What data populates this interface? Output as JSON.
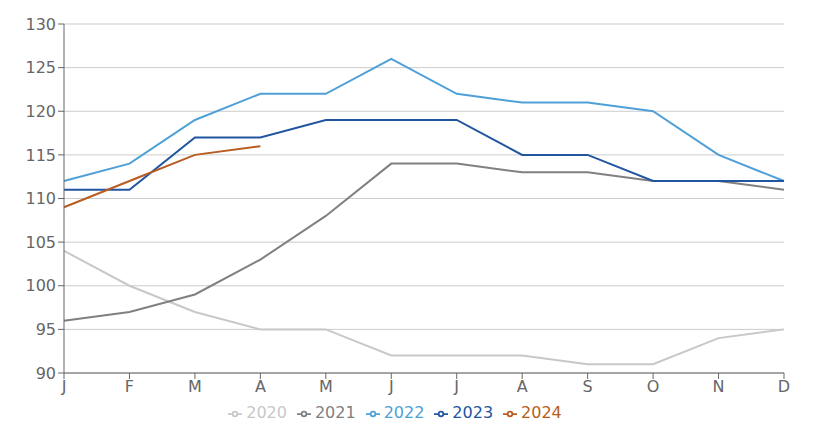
{
  "chart_data": {
    "type": "line",
    "categories": [
      "J",
      "F",
      "M",
      "A",
      "M",
      "J",
      "J",
      "A",
      "S",
      "O",
      "N",
      "D"
    ],
    "series": [
      {
        "name": "2020",
        "color": "#c8c8c8",
        "values": [
          104,
          100,
          97,
          95,
          95,
          92,
          92,
          92,
          91,
          91,
          94,
          95
        ]
      },
      {
        "name": "2021",
        "color": "#808080",
        "values": [
          96,
          97,
          99,
          103,
          108,
          114,
          114,
          113,
          113,
          112,
          112,
          111
        ]
      },
      {
        "name": "2022",
        "color": "#4fa0d8",
        "values": [
          112,
          114,
          119,
          122,
          122,
          126,
          122,
          121,
          121,
          120,
          115,
          112
        ]
      },
      {
        "name": "2023",
        "color": "#2255a0",
        "values": [
          111,
          111,
          117,
          117,
          119,
          119,
          119,
          115,
          115,
          112,
          112,
          112
        ]
      },
      {
        "name": "2024",
        "color": "#b85c20",
        "values": [
          109,
          112,
          115,
          116,
          null,
          null,
          null,
          null,
          null,
          null,
          null,
          null
        ]
      }
    ],
    "ylim": [
      90,
      130
    ],
    "yticks": [
      90,
      95,
      100,
      105,
      110,
      115,
      120,
      125,
      130
    ],
    "grid": true,
    "legend": "bottom"
  }
}
